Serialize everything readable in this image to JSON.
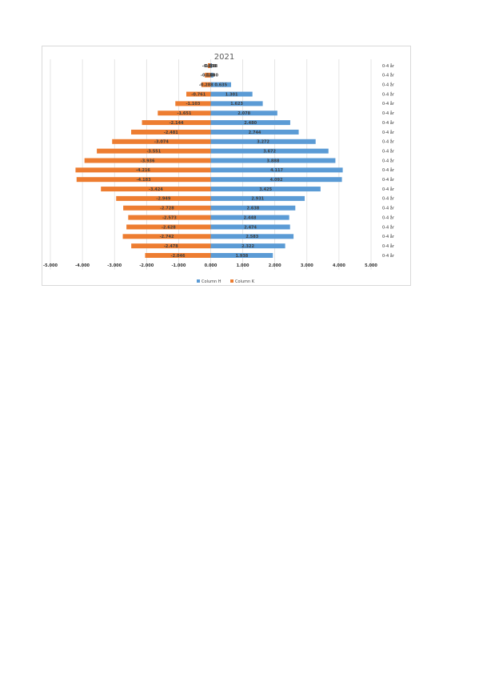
{
  "chart_data": {
    "type": "bar",
    "orientation": "horizontal",
    "title": "2021",
    "xlim": [
      -5,
      5
    ],
    "x_ticks": [
      "-5.000",
      "-4.000",
      "-3.000",
      "-2.000",
      "-1.000",
      "0.000",
      "1.000",
      "2.000",
      "3.000",
      "4.000",
      "5.000"
    ],
    "x_tick_values": [
      -5,
      -4,
      -3,
      -2,
      -1,
      0,
      1,
      2,
      3,
      4,
      5
    ],
    "grid": "vertical",
    "legend_position": "bottom",
    "categories": [
      "0-4 år",
      "0-4 år",
      "0-4 år",
      "0-4 år",
      "0-4 år",
      "0-4 år",
      "0-4 år",
      "0-4 år",
      "0-4 år",
      "0-4 år",
      "0-4 år",
      "0-4 år",
      "0-4 år",
      "0-4 år",
      "0-4 år",
      "0-4 år",
      "0-4 år",
      "0-4 år",
      "0-4 år",
      "0-4 år",
      "0-4 år",
      "0-4 år"
    ],
    "series": [
      {
        "name": "Column H",
        "color": "#5b9bd5",
        "values": [
          0.038,
          0.08,
          0.635,
          1.301,
          1.623,
          2.078,
          2.48,
          2.744,
          3.272,
          3.672,
          3.888,
          4.117,
          4.092,
          3.425,
          2.931,
          2.638,
          2.448,
          2.474,
          2.583,
          2.322,
          1.938,
          null
        ],
        "labels": [
          "0.038",
          "0.080",
          "0.635",
          "1.301",
          "1.623",
          "2.078",
          "2.480",
          "2.744",
          "3.272",
          "3.672",
          "3.888",
          "4.117",
          "4.092",
          "3.425",
          "2.931",
          "2.638",
          "2.448",
          "2.474",
          "2.583",
          "2.322",
          "1.938",
          ""
        ]
      },
      {
        "name": "Column K",
        "color": "#ed7d31",
        "values": [
          -0.088,
          -0.183,
          -0.288,
          -0.761,
          -1.103,
          -1.651,
          -2.144,
          -2.481,
          -3.074,
          -3.551,
          -3.936,
          -4.216,
          -4.183,
          -3.424,
          -2.949,
          -2.728,
          -2.573,
          -2.628,
          -2.742,
          -2.478,
          -2.046,
          null
        ],
        "labels": [
          "-0.088",
          "-0.183",
          "-0.288",
          "-0.761",
          "-1.103",
          "-1.651",
          "-2.144",
          "-2.481",
          "-3.074",
          "-3.551",
          "-3.936",
          "-4.216",
          "-4.183",
          "-3.424",
          "-2.949",
          "-2.728",
          "-2.573",
          "-2.628",
          "-2.742",
          "-2.478",
          "-2.046",
          ""
        ]
      }
    ]
  }
}
